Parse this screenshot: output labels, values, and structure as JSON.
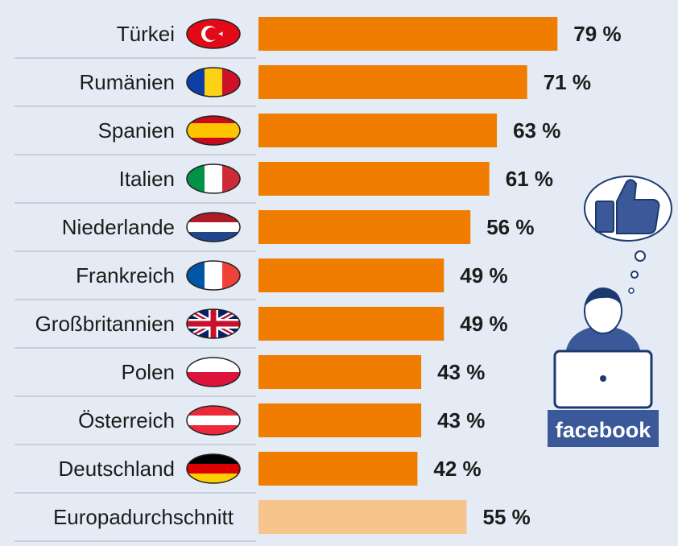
{
  "chart_data": {
    "type": "bar",
    "orientation": "horizontal",
    "categories": [
      "Türkei",
      "Rumänien",
      "Spanien",
      "Italien",
      "Niederlande",
      "Frankreich",
      "Großbritannien",
      "Polen",
      "Österreich",
      "Deutschland",
      "Europadurchschnitt"
    ],
    "values": [
      79,
      71,
      63,
      61,
      56,
      49,
      49,
      43,
      43,
      42,
      55
    ],
    "value_labels": [
      "79 %",
      "71 %",
      "63 %",
      "61 %",
      "56 %",
      "49 %",
      "49 %",
      "43 %",
      "43 %",
      "42 %",
      "55 %"
    ],
    "unit": "%",
    "xlim": [
      0,
      100
    ],
    "grid": false,
    "legend": "none",
    "colors": {
      "bar": "#f07d00",
      "bar_average": "#f8c48e",
      "background": "#e4ebf4",
      "separator": "#bcc6d2",
      "facebook": "#3b5998"
    },
    "flag_icons": [
      "turkey-flag-icon",
      "romania-flag-icon",
      "spain-flag-icon",
      "italy-flag-icon",
      "netherlands-flag-icon",
      "france-flag-icon",
      "uk-flag-icon",
      "poland-flag-icon",
      "austria-flag-icon",
      "germany-flag-icon"
    ]
  },
  "illustration": {
    "brand": "facebook",
    "icons": [
      "thumbs-up-icon",
      "thought-bubble-icon",
      "person-icon",
      "laptop-icon"
    ]
  }
}
